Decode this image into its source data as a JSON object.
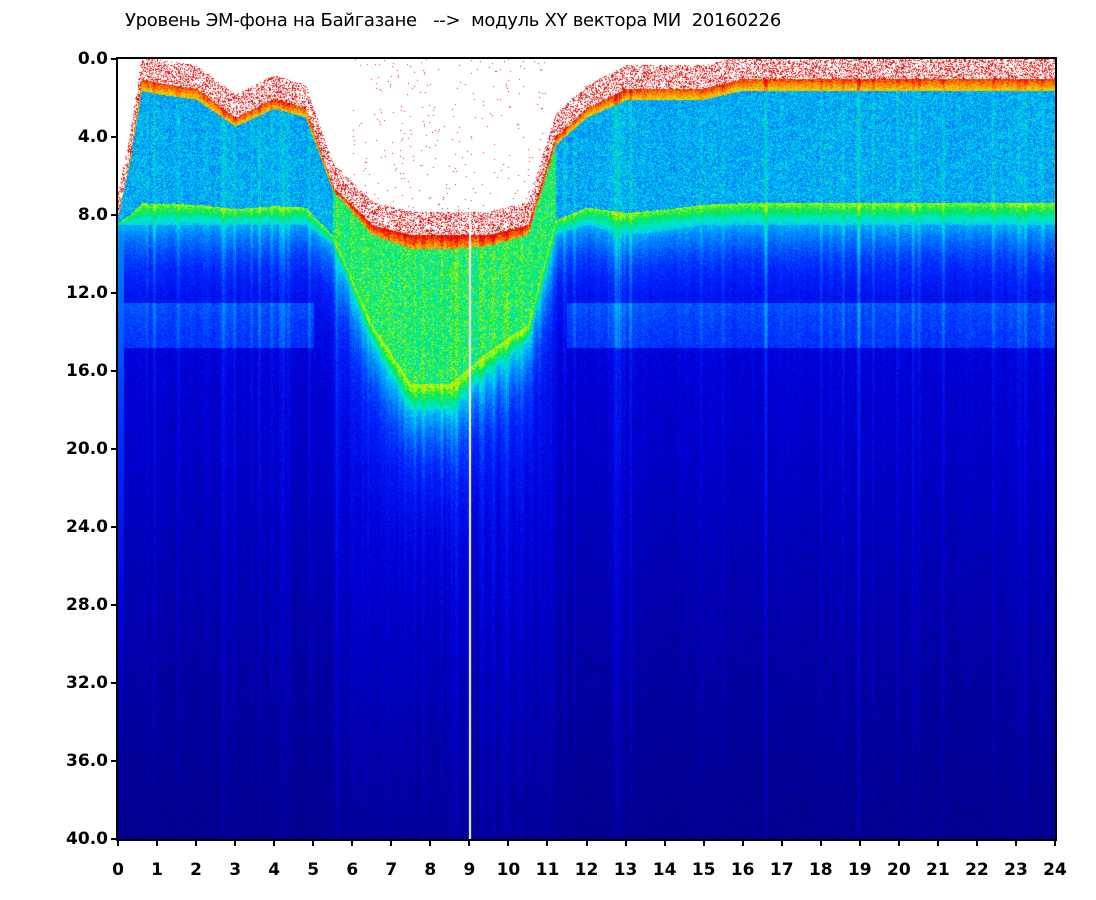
{
  "chart_data": {
    "type": "heatmap",
    "title": "Уровень ЭМ-фона на Байгазане   -->  модуль XY вектора МИ  20160226",
    "xlabel": "",
    "ylabel": "",
    "x_ticks": [
      "0",
      "1",
      "2",
      "3",
      "4",
      "5",
      "6",
      "7",
      "8",
      "9",
      "10",
      "11",
      "12",
      "13",
      "14",
      "15",
      "16",
      "17",
      "18",
      "19",
      "20",
      "21",
      "22",
      "23",
      "24"
    ],
    "y_ticks": [
      "0.0",
      "4.0",
      "8.0",
      "12.0",
      "16.0",
      "20.0",
      "24.0",
      "28.0",
      "32.0",
      "36.0",
      "40.0"
    ],
    "xlim": [
      0,
      24
    ],
    "ylim": [
      0,
      40
    ],
    "y_inverted": true,
    "colormap": [
      "#00008b",
      "#0000ff",
      "#0080ff",
      "#00ffff",
      "#00ff00",
      "#ffff00",
      "#ff0000",
      "#ffffff"
    ],
    "bright_band_profile": {
      "hours": [
        0,
        0.3,
        0.6,
        1,
        2,
        3,
        4,
        4.8,
        5.5,
        6.5,
        7.5,
        8.5,
        9.5,
        10.5,
        11.2,
        12,
        13,
        14,
        15,
        16,
        17,
        18,
        19,
        20,
        21,
        22,
        23,
        24
      ],
      "top_edge": [
        8.0,
        5.0,
        1.0,
        1.2,
        1.5,
        3.0,
        2.0,
        2.5,
        6.5,
        8.5,
        9.0,
        9.0,
        9.0,
        8.5,
        4.0,
        2.5,
        1.5,
        1.5,
        1.5,
        1.0,
        1.0,
        1.0,
        1.0,
        1.0,
        1.0,
        1.0,
        1.0,
        1.0
      ],
      "bottom_edge": [
        8.5,
        8.5,
        8.5,
        8.5,
        8.5,
        8.5,
        8.5,
        8.5,
        9.5,
        14.5,
        18.0,
        18.0,
        16.0,
        14.5,
        9.0,
        8.5,
        9.0,
        8.8,
        8.5,
        8.5,
        8.5,
        8.5,
        8.5,
        8.5,
        8.5,
        8.5,
        8.5,
        8.5
      ]
    },
    "white_gap_line_hour": 9.0
  }
}
